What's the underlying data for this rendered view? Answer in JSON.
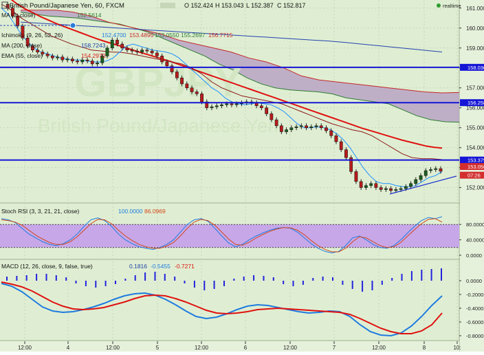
{
  "header": {
    "title": "British Pound/Japanese Yen, 60, FXCM",
    "ohlc": [
      "O 152.424",
      "H 153.043",
      "L 152.387",
      "C 152.817"
    ],
    "realtime": "realtime",
    "watermark_big": "GBPJPY",
    "watermark_small": "British Pound/Japanese Yen"
  },
  "indicators": [
    {
      "label": "MA (3, close)",
      "values": [
        "152.5614"
      ],
      "colors": [
        "#2e7d32"
      ]
    },
    {
      "label": "Ichimoku (9, 26, 52, 26)",
      "values": [
        "152.4700",
        "153.4895",
        "153.0550",
        "155.2697",
        "156.7715"
      ],
      "colors": [
        "#1e7be0",
        "#c62828",
        "#2e7d32",
        "#2e7d32",
        "#c62828"
      ]
    },
    {
      "label": "MA (200, close)",
      "values": [
        "158.7243"
      ],
      "colors": [
        "#1a3ea8"
      ]
    },
    {
      "label": "EMA (55, close)",
      "values": [
        "154.2970"
      ],
      "colors": [
        "#d81b1b"
      ]
    }
  ],
  "colors": {
    "background": "#dfeed2",
    "grid": "#c7d6ba",
    "candle_up": "#1b5e20",
    "candle_down": "#b71c1c",
    "horizontal_line": "#1515d6",
    "ema": "#e01010",
    "ma200": "#2340b0",
    "tenkan": "#1e90ff",
    "kijun": "#8b1a1a",
    "cloud_fill": "#b9a3c6",
    "rsi_band": "#c7a7e8",
    "stoch_k": "#1e7be0",
    "stoch_d": "#d3451b",
    "macd_line": "#1e7be0",
    "macd_signal": "#e01010",
    "macd_hist": "#2222dd"
  },
  "price_axis": {
    "ticks": [
      "161.000",
      "160.000",
      "159.000",
      "158.000",
      "157.000",
      "156.000",
      "155.000",
      "154.000",
      "153.000",
      "152.000"
    ],
    "level_tags": [
      {
        "label": "158.030",
        "value": 158.03,
        "bg": "#1515d6"
      },
      {
        "label": "156.258",
        "value": 156.258,
        "bg": "#1515d6"
      },
      {
        "label": "153.379",
        "value": 153.379,
        "bg": "#1515d6"
      },
      {
        "label": "153.056",
        "value": 153.056,
        "bg": "#d32f2f"
      },
      {
        "label": "07:26",
        "value": 152.62,
        "bg": "#d32f2f"
      }
    ]
  },
  "stoch_panel": {
    "label": "Stoch RSI (3, 3, 21, 21, close)",
    "values": [
      "100.0000",
      "86.0969"
    ],
    "ticks": [
      "80.0000",
      "40.0000",
      "0.0000"
    ]
  },
  "macd_panel": {
    "label": "MACD (12, 26, close, 9, false, true)",
    "values": [
      "0.1816",
      "-0.5455",
      "-0.7271"
    ],
    "ticks": [
      "0.0000",
      "-0.2000",
      "-0.4000",
      "-0.6000",
      "-0.8000"
    ]
  },
  "time_axis": {
    "labels": [
      "12:00",
      "4",
      "12:00",
      "5",
      "12:00",
      "6",
      "12:00",
      "7",
      "12:00",
      "8",
      "10:"
    ]
  },
  "chart_data": {
    "type": "line",
    "ylim": [
      151.4,
      161.2
    ],
    "horizontal_levels": [
      158.03,
      156.258,
      153.379
    ],
    "price_close": [
      161.2,
      161.0,
      160.6,
      160.1,
      159.5,
      159.1,
      158.9,
      158.8,
      158.7,
      158.6,
      158.5,
      158.55,
      158.4,
      158.45,
      158.35,
      158.3,
      158.4,
      158.35,
      158.2,
      158.25,
      158.6,
      159.0,
      159.4,
      159.2,
      159.0,
      158.9,
      158.85,
      158.8,
      158.9,
      158.85,
      158.75,
      158.6,
      158.3,
      158.1,
      157.8,
      157.5,
      157.2,
      157.0,
      156.8,
      156.7,
      156.3,
      156.0,
      156.05,
      156.1,
      156.15,
      156.2,
      156.15,
      156.2,
      156.25,
      156.3,
      156.25,
      156.1,
      156.0,
      155.7,
      155.4,
      155.1,
      154.8,
      154.9,
      155.0,
      155.05,
      155.1,
      155.0,
      155.05,
      155.1,
      155.0,
      154.85,
      154.6,
      154.3,
      153.9,
      153.5,
      152.8,
      152.3,
      152.0,
      152.1,
      152.2,
      152.0,
      151.9,
      151.95,
      151.85,
      151.9,
      151.95,
      152.05,
      152.2,
      152.4,
      152.6,
      152.85,
      152.9,
      152.95,
      152.82
    ],
    "ema_55": [
      161.8,
      161.5,
      161.2,
      160.95,
      160.75,
      160.55,
      160.38,
      160.2,
      160.05,
      159.9,
      159.75,
      159.6,
      159.45,
      159.32,
      159.2,
      159.08,
      158.95,
      158.82,
      158.7,
      158.58,
      158.46,
      158.34,
      158.2,
      158.06,
      157.92,
      157.78,
      157.64,
      157.5,
      157.36,
      157.22,
      157.08,
      156.94,
      156.8,
      156.66,
      156.52,
      156.38,
      156.24,
      156.1,
      155.96,
      155.82,
      155.68,
      155.54,
      155.4,
      155.26,
      155.12,
      154.98,
      154.86,
      154.74,
      154.62,
      154.5,
      154.38,
      154.28,
      154.18,
      154.08,
      154.02,
      153.98
    ],
    "ma_200": [
      160.3,
      160.25,
      160.2,
      160.15,
      160.1,
      160.05,
      160.0,
      159.95,
      159.9,
      159.85,
      159.8,
      159.75,
      159.7,
      159.65,
      159.6,
      159.55,
      159.5,
      159.45,
      159.4,
      159.35,
      159.28,
      159.2,
      159.12,
      159.04,
      158.96,
      158.88,
      158.8
    ],
    "tenkan": [
      161.0,
      160.7,
      160.2,
      159.7,
      159.3,
      159.0,
      158.8,
      158.7,
      158.6,
      158.5,
      158.45,
      158.4,
      158.4,
      158.35,
      158.3,
      158.3,
      158.35,
      158.5,
      158.8,
      159.1,
      159.2,
      159.1,
      159.0,
      158.9,
      158.85,
      158.8,
      158.7,
      158.5,
      158.2,
      157.9,
      157.6,
      157.3,
      157.0,
      156.8,
      156.5,
      156.3,
      156.2,
      156.15,
      156.2,
      156.25,
      156.2,
      156.15,
      156.0,
      155.8,
      155.5,
      155.2,
      155.0,
      155.0,
      155.05,
      155.0,
      154.9,
      154.7,
      154.4,
      154.0,
      153.5,
      153.0,
      152.6,
      152.3,
      152.2,
      152.2,
      152.1,
      152.05,
      152.05,
      152.1,
      152.3,
      152.5,
      152.6,
      152.8
    ],
    "kijun": [
      161.2,
      160.9,
      160.5,
      160.2,
      159.9,
      159.6,
      159.4,
      159.2,
      159.05,
      158.9,
      158.85,
      158.8,
      158.78,
      158.7,
      158.6,
      158.5,
      158.4,
      158.3,
      158.2,
      158.0,
      157.7,
      157.3,
      157.0,
      156.8,
      156.6,
      156.5,
      156.4,
      156.3,
      156.2,
      156.0,
      155.8,
      155.6,
      155.4,
      155.2,
      155.05,
      154.9,
      154.8,
      154.6,
      154.3,
      154.0,
      153.7,
      153.5,
      153.45,
      153.45,
      153.4
    ],
    "cloud_span_a": [
      160.8,
      160.7,
      160.6,
      160.55,
      160.5,
      160.4,
      160.3,
      160.2,
      160.0,
      159.8,
      159.5,
      159.2,
      158.9,
      158.6,
      158.2,
      157.9,
      157.5,
      157.2,
      157.0,
      156.9,
      156.85,
      156.8,
      156.7,
      156.5,
      156.4,
      156.3,
      156.2,
      155.9,
      155.6,
      155.4,
      155.3,
      155.28
    ],
    "cloud_span_b": [
      160.9,
      160.9,
      160.9,
      160.8,
      160.6,
      160.3,
      160.1,
      159.9,
      159.7,
      159.4,
      159.2,
      159.0,
      158.8,
      158.5,
      158.3,
      158.0,
      157.6,
      157.4,
      157.3,
      157.2,
      157.1,
      157.0,
      156.9,
      156.8,
      156.75,
      156.77
    ],
    "stoch_k": [
      95,
      92,
      85,
      70,
      55,
      45,
      35,
      28,
      25,
      30,
      40,
      55,
      75,
      92,
      97,
      90,
      75,
      55,
      40,
      30,
      22,
      18,
      15,
      20,
      28,
      40,
      60,
      80,
      92,
      95,
      88,
      70,
      50,
      32,
      22,
      28,
      40,
      50,
      58,
      65,
      70,
      72,
      70,
      60,
      45,
      30,
      18,
      10,
      6,
      10,
      25,
      45,
      50,
      40,
      28,
      20,
      18,
      25,
      40,
      58,
      75,
      90,
      98,
      95,
      100
    ],
    "stoch_d": [
      92,
      90,
      86,
      78,
      65,
      52,
      42,
      33,
      28,
      28,
      35,
      48,
      65,
      82,
      93,
      92,
      82,
      65,
      50,
      38,
      28,
      22,
      18,
      18,
      24,
      33,
      50,
      70,
      86,
      93,
      90,
      78,
      60,
      42,
      28,
      26,
      34,
      45,
      54,
      62,
      68,
      72,
      71,
      65,
      53,
      38,
      25,
      15,
      9,
      9,
      18,
      35,
      48,
      45,
      35,
      25,
      20,
      22,
      33,
      50,
      66,
      82,
      93,
      95,
      86
    ],
    "macd_line": [
      -0.04,
      -0.08,
      -0.16,
      -0.27,
      -0.38,
      -0.44,
      -0.46,
      -0.45,
      -0.42,
      -0.38,
      -0.33,
      -0.27,
      -0.22,
      -0.19,
      -0.18,
      -0.21,
      -0.27,
      -0.35,
      -0.44,
      -0.52,
      -0.55,
      -0.53,
      -0.48,
      -0.42,
      -0.37,
      -0.35,
      -0.36,
      -0.39,
      -0.42,
      -0.45,
      -0.47,
      -0.46,
      -0.44,
      -0.45,
      -0.52,
      -0.64,
      -0.74,
      -0.79,
      -0.8,
      -0.76,
      -0.66,
      -0.52,
      -0.36,
      -0.22
    ],
    "macd_signal": [
      -0.02,
      -0.05,
      -0.09,
      -0.15,
      -0.23,
      -0.31,
      -0.37,
      -0.41,
      -0.42,
      -0.41,
      -0.39,
      -0.35,
      -0.31,
      -0.26,
      -0.22,
      -0.21,
      -0.22,
      -0.26,
      -0.31,
      -0.37,
      -0.43,
      -0.47,
      -0.48,
      -0.47,
      -0.45,
      -0.42,
      -0.41,
      -0.4,
      -0.41,
      -0.42,
      -0.43,
      -0.44,
      -0.45,
      -0.46,
      -0.49,
      -0.55,
      -0.62,
      -0.69,
      -0.74,
      -0.77,
      -0.77,
      -0.73,
      -0.64,
      -0.47
    ],
    "macd_hist": [
      0.06,
      0.07,
      0.08,
      0.1,
      0.1,
      0.08,
      0.05,
      -0.04,
      -0.08,
      -0.1,
      -0.08,
      -0.05,
      0.03,
      0.08,
      0.12,
      0.13,
      0.1,
      0.06,
      -0.04,
      -0.1,
      -0.14,
      -0.12,
      -0.08,
      0.03,
      0.06,
      0.08,
      0.07,
      0.05,
      -0.05,
      -0.08,
      -0.06,
      0.04,
      0.06,
      0.05,
      -0.06,
      -0.12,
      -0.16,
      -0.14,
      -0.06,
      0.04,
      0.1,
      0.14,
      0.16,
      0.17,
      0.18
    ]
  }
}
